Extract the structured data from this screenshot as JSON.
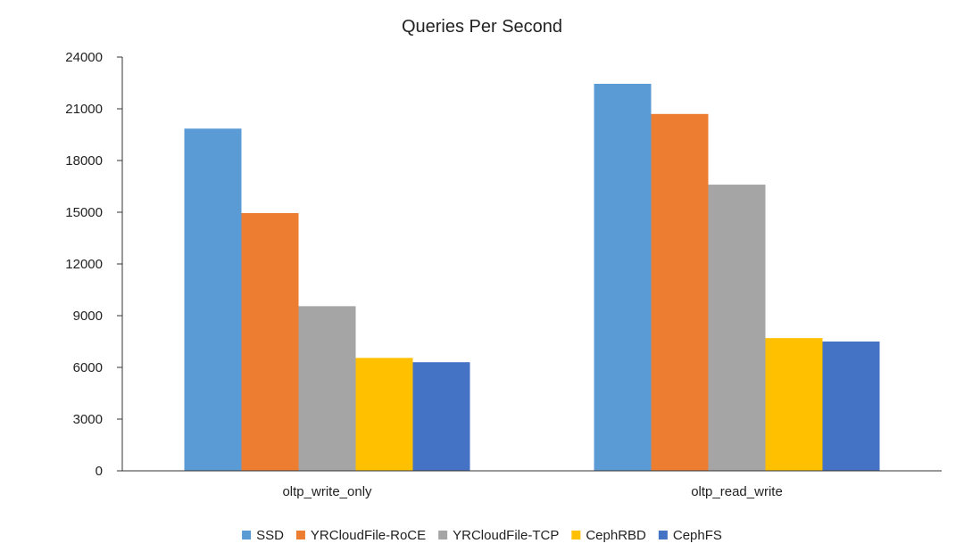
{
  "chart_data": {
    "type": "bar",
    "title": "Queries Per Second",
    "xlabel": "",
    "ylabel": "",
    "ylim": [
      0,
      24000
    ],
    "yticks": [
      "0",
      "3000",
      "6000",
      "9000",
      "12000",
      "15000",
      "18000",
      "21000",
      "24000"
    ],
    "categories": [
      "oltp_write_only",
      "oltp_read_write"
    ],
    "series": [
      {
        "name": "SSD",
        "color": "#5B9BD5",
        "values": [
          19850,
          22450
        ]
      },
      {
        "name": "YRCloudFile-RoCE",
        "color": "#ED7D31",
        "values": [
          14950,
          20700
        ]
      },
      {
        "name": "YRCloudFile-TCP",
        "color": "#A5A5A5",
        "values": [
          9550,
          16600
        ]
      },
      {
        "name": "CephRBD",
        "color": "#FFC000",
        "values": [
          6550,
          7700
        ]
      },
      {
        "name": "CephFS",
        "color": "#4472C4",
        "values": [
          6300,
          7500
        ]
      }
    ],
    "grid": false,
    "legend_position": "bottom"
  }
}
